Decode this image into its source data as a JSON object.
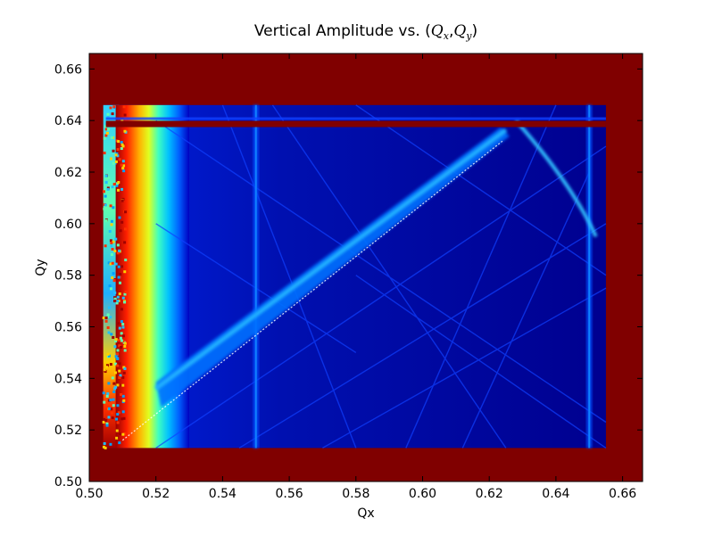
{
  "chart_data": {
    "type": "heatmap",
    "title": {
      "prefix": "Vertical Amplitude vs. (",
      "q1": "Q",
      "q1_sub": "x",
      "sep": ",",
      "q2": "Q",
      "q2_sub": "y",
      "suffix": ")"
    },
    "xlabel": "Qx",
    "ylabel": "Qy",
    "xlim": [
      0.5,
      0.666
    ],
    "ylim": [
      0.5,
      0.666
    ],
    "xticks": [
      "0.50",
      "0.52",
      "0.54",
      "0.56",
      "0.58",
      "0.60",
      "0.62",
      "0.64",
      "0.66"
    ],
    "yticks": [
      "0.50",
      "0.52",
      "0.54",
      "0.56",
      "0.58",
      "0.60",
      "0.62",
      "0.64",
      "0.66"
    ],
    "colormap": "jet",
    "colors": {
      "saturated": "#800000",
      "background": "#00008f",
      "band": "#0050ff",
      "diagonal": "#20b0ff"
    },
    "features": {
      "scan_region": {
        "qx": [
          0.505,
          0.655
        ],
        "qy": [
          0.513,
          0.646
        ]
      },
      "hot_column_qx": [
        0.509,
        0.516
      ],
      "hot_row_qy": 0.6385,
      "main_resonance": {
        "from": [
          0.52,
          0.535
        ],
        "to": [
          0.625,
          0.636
        ]
      },
      "vertical_resonances_qx": [
        0.55,
        0.65
      ]
    }
  }
}
